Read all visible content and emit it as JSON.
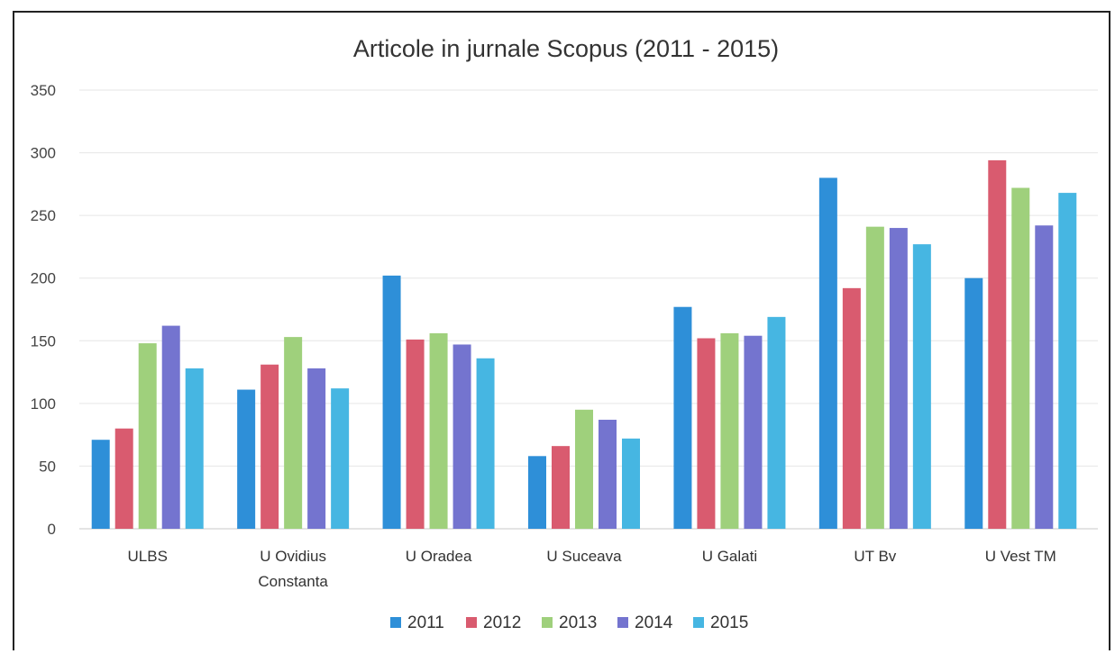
{
  "chart_data": {
    "type": "bar",
    "title": "Articole in jurnale Scopus (2011 - 2015)",
    "xlabel": "",
    "ylabel": "",
    "ylim": [
      0,
      350
    ],
    "yticks": [
      0,
      50,
      100,
      150,
      200,
      250,
      300,
      350
    ],
    "grid": true,
    "legend_position": "bottom",
    "categories": [
      [
        "ULBS"
      ],
      [
        "U Ovidius",
        "Constanta"
      ],
      [
        "U Oradea"
      ],
      [
        "U Suceava"
      ],
      [
        "U Galati"
      ],
      [
        "UT Bv"
      ],
      [
        "U Vest TM"
      ]
    ],
    "series": [
      {
        "name": "2011",
        "color": "#2e8fd8",
        "values": [
          71,
          111,
          202,
          58,
          177,
          280,
          200
        ]
      },
      {
        "name": "2012",
        "color": "#d95b6f",
        "values": [
          80,
          131,
          151,
          66,
          152,
          192,
          294
        ]
      },
      {
        "name": "2013",
        "color": "#9fd07c",
        "values": [
          148,
          153,
          156,
          95,
          156,
          241,
          272
        ]
      },
      {
        "name": "2014",
        "color": "#7474cf",
        "values": [
          162,
          128,
          147,
          87,
          154,
          240,
          242
        ]
      },
      {
        "name": "2015",
        "color": "#46b6e2",
        "values": [
          128,
          112,
          136,
          72,
          169,
          227,
          268
        ]
      }
    ]
  }
}
